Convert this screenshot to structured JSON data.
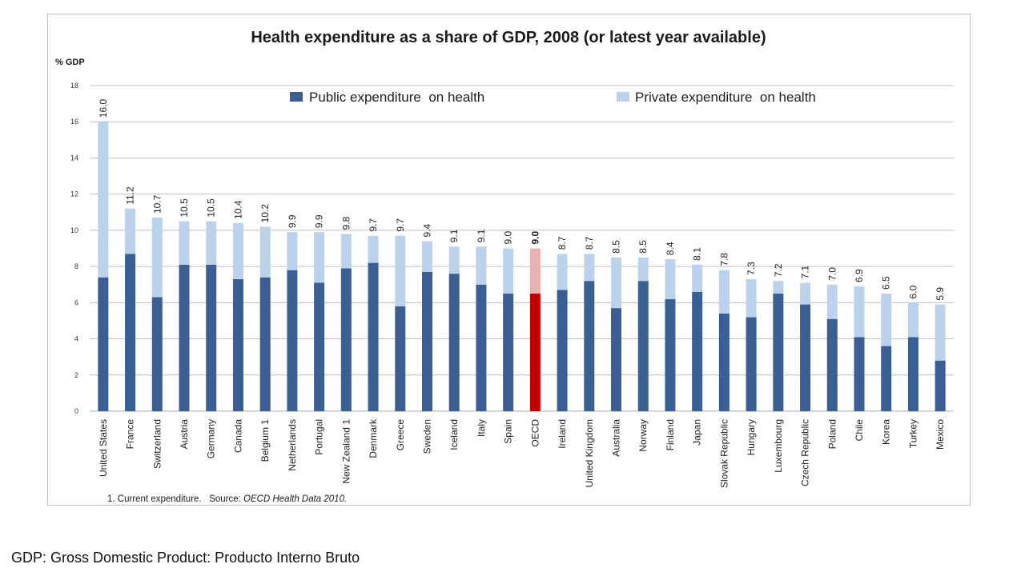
{
  "colors": {
    "public": "#3b5f93",
    "private": "#bcd1ea",
    "public_highlight": "#c00000",
    "private_highlight": "#e7b2b2",
    "grid": "#bfbfbf"
  },
  "chart_data": {
    "type": "bar",
    "stacked": true,
    "title": "Health expenditure as a share of GDP, 2008 (or latest year available)",
    "ylabel": "% GDP",
    "xlabel": "",
    "ylim": [
      0,
      18
    ],
    "yticks": [
      0,
      2,
      4,
      6,
      8,
      10,
      12,
      14,
      16,
      18
    ],
    "grid": true,
    "legend_position": "top",
    "highlight_category": "OECD",
    "categories": [
      "United States",
      "France",
      "Switzerland",
      "Austria",
      "Germany",
      "Canada",
      "Belgium 1",
      "Netherlands",
      "Portugal",
      "New Zealand 1",
      "Denmark",
      "Greece",
      "Sweden",
      "Iceland",
      "Italy",
      "Spain",
      "OECD",
      "Ireland",
      "United Kingdom",
      "Australia",
      "Norway",
      "Finland",
      "Japan",
      "Slovak Republic",
      "Hungary",
      "Luxembourg",
      "Czech Republic",
      "Poland",
      "Chile",
      "Korea",
      "Turkey",
      "Mexico"
    ],
    "series": [
      {
        "name": "Public expenditure  on health",
        "values": [
          7.4,
          8.7,
          6.3,
          8.1,
          8.1,
          7.3,
          7.4,
          7.8,
          7.1,
          7.9,
          8.2,
          5.8,
          7.7,
          7.6,
          7.0,
          6.5,
          6.5,
          6.7,
          7.2,
          5.7,
          7.2,
          6.2,
          6.6,
          5.4,
          5.2,
          6.5,
          5.9,
          5.1,
          4.1,
          3.6,
          4.1,
          2.8
        ]
      },
      {
        "name": "Private expenditure  on health",
        "values": [
          8.6,
          2.5,
          4.4,
          2.4,
          2.4,
          3.1,
          2.8,
          2.1,
          2.8,
          1.9,
          1.5,
          3.9,
          1.7,
          1.5,
          2.1,
          2.5,
          2.5,
          2.0,
          1.5,
          2.8,
          1.3,
          2.2,
          1.5,
          2.4,
          2.1,
          0.7,
          1.2,
          1.9,
          2.8,
          2.9,
          1.9,
          3.1
        ]
      }
    ],
    "totals": [
      "16.0",
      "11.2",
      "10.7",
      "10.5",
      "10.5",
      "10.4",
      "10.2",
      "9.9",
      "9.9",
      "9.8",
      "9.7",
      "9.7",
      "9.4",
      "9.1",
      "9.1",
      "9.0",
      "9.0",
      "8.7",
      "8.7",
      "8.5",
      "8.5",
      "8.4",
      "8.1",
      "7.8",
      "7.3",
      "7.2",
      "7.1",
      "7.0",
      "6.9",
      "6.5",
      "6.0",
      "5.9"
    ],
    "footnote": {
      "prefix": "1. Current expenditure.   Source: ",
      "source": "OECD Health Data 2010."
    }
  },
  "caption": "GDP: Gross Domestic Product: Producto Interno Bruto"
}
